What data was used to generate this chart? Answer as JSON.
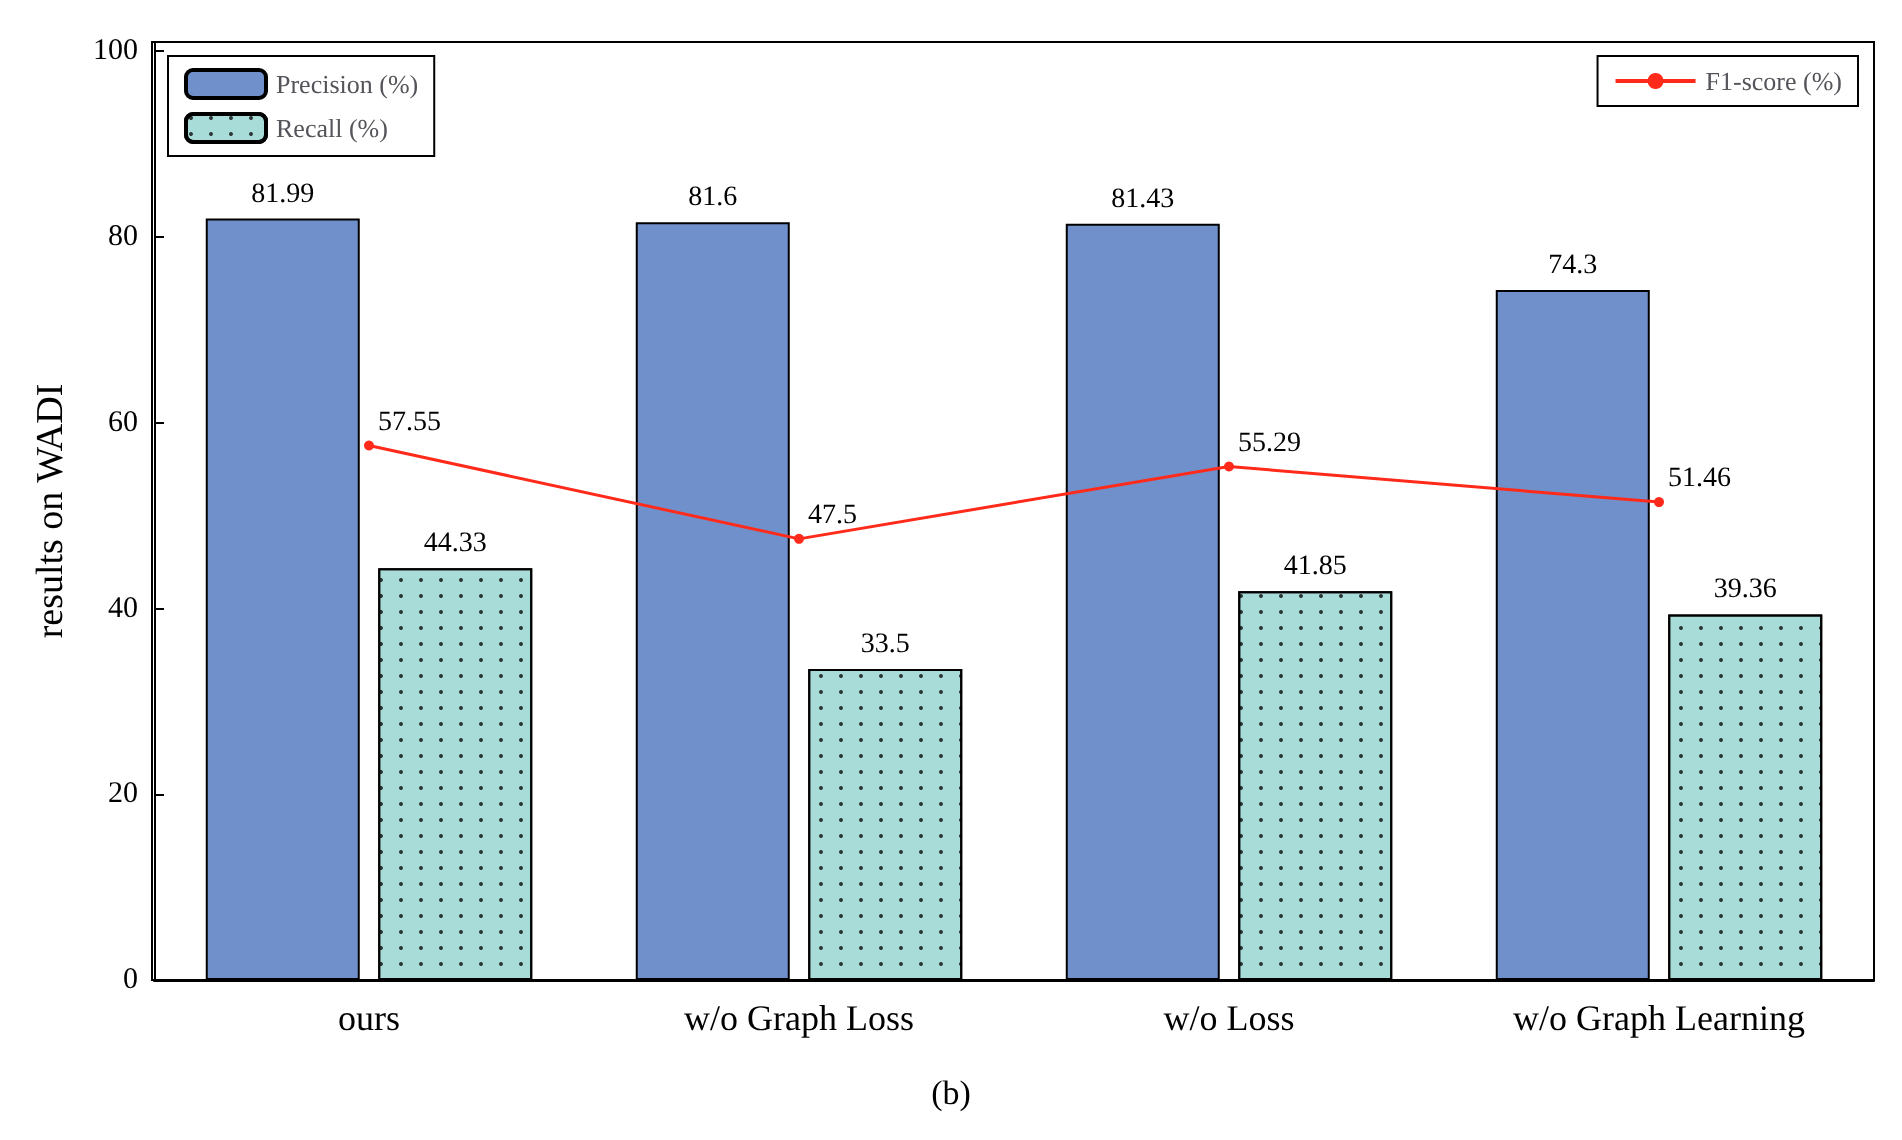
{
  "chart_data": {
    "type": "bar",
    "ylabel": "results on WADI",
    "categories": [
      "ours",
      "w/o Graph Loss",
      "w/o Loss",
      "w/o Graph Learning"
    ],
    "series": [
      {
        "name": "Precision (%)",
        "color": "#7090cc",
        "values": [
          81.99,
          81.6,
          81.43,
          74.3
        ]
      },
      {
        "name": "Recall (%)",
        "color": "#a8dcd8",
        "values": [
          44.33,
          33.5,
          41.85,
          39.36
        ]
      },
      {
        "name": "F1-score (%)",
        "type": "line",
        "color": "#ff2a1a",
        "values": [
          57.55,
          47.5,
          55.29,
          51.46
        ]
      }
    ],
    "ylim": [
      0,
      101
    ],
    "yticks": [
      0,
      20,
      40,
      60,
      80,
      100
    ],
    "grid": false,
    "legend": "top",
    "marker": "circle",
    "line_style": "solid",
    "data_labels": true,
    "annotations": [
      "(b)"
    ]
  }
}
